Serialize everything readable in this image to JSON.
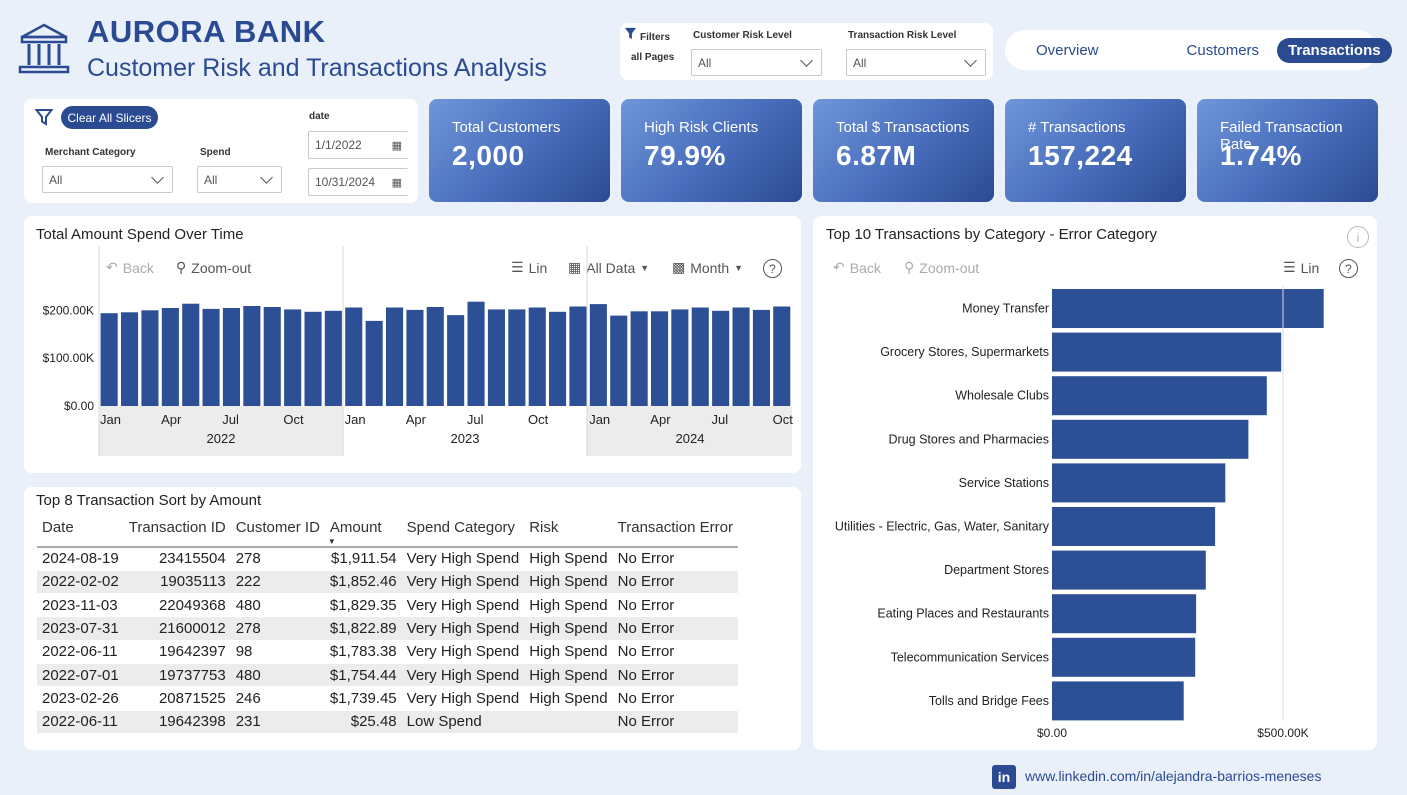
{
  "header": {
    "brand": "AURORA BANK",
    "subtitle": "Customer Risk and Transactions Analysis"
  },
  "page_filters": {
    "title_line1": "Filters",
    "title_line2": "all Pages",
    "customer_risk_label": "Customer Risk Level",
    "customer_risk_value": "All",
    "transaction_risk_label": "Transaction Risk Level",
    "transaction_risk_value": "All"
  },
  "nav": {
    "tabs": [
      {
        "label": "Overview",
        "active": false
      },
      {
        "label": "Customers",
        "active": false
      },
      {
        "label": "Transactions",
        "active": true
      }
    ]
  },
  "slicers": {
    "clear_label": "Clear All Slicers",
    "merchant_label": "Merchant Category",
    "merchant_value": "All",
    "spend_label": "Spend",
    "spend_value": "All",
    "date_label": "date",
    "date_start": "1/1/2022",
    "date_end": "10/31/2024"
  },
  "kpis": [
    {
      "label": "Total Customers",
      "value": "2,000"
    },
    {
      "label": "High Risk Clients",
      "value": "79.9%"
    },
    {
      "label": "Total $ Transactions",
      "value": "6.87M"
    },
    {
      "label": "# Transactions",
      "value": "157,224"
    },
    {
      "label": "Failed Transaction Rate",
      "value": "1.74%"
    }
  ],
  "spend_chart": {
    "title": "Total Amount Spend Over Time",
    "tools": {
      "back": "Back",
      "zoom": "Zoom-out",
      "lin": "Lin",
      "all_data": "All Data",
      "month": "Month",
      "help": "?"
    },
    "y_ticks": [
      "$200.00K",
      "$100.00K",
      "$0.00"
    ],
    "years": [
      "2022",
      "2023",
      "2024"
    ],
    "month_ticks": [
      "Jan",
      "Apr",
      "Jul",
      "Oct",
      "Jan",
      "Apr",
      "Jul",
      "Oct",
      "Jan",
      "Apr",
      "Jul",
      "Oct"
    ]
  },
  "category_chart": {
    "title": "Top 10 Transactions by Category - Error Category",
    "tools": {
      "back": "Back",
      "zoom": "Zoom-out",
      "lin": "Lin",
      "help": "?",
      "info": "i"
    },
    "x_ticks": [
      "$0.00",
      "$500.00K"
    ]
  },
  "table": {
    "title": "Top 8 Transaction Sort by Amount",
    "columns": [
      "Date",
      "Transaction ID",
      "Customer ID",
      "Amount",
      "Spend Category",
      "Risk",
      "Transaction Error"
    ],
    "rows": [
      [
        "2024-08-19",
        "23415504",
        "278",
        "$1,911.54",
        "Very High Spend",
        "High Spend",
        "No Error"
      ],
      [
        "2022-02-02",
        "19035113",
        "222",
        "$1,852.46",
        "Very High Spend",
        "High Spend",
        "No Error"
      ],
      [
        "2023-11-03",
        "22049368",
        "480",
        "$1,829.35",
        "Very High Spend",
        "High Spend",
        "No Error"
      ],
      [
        "2023-07-31",
        "21600012",
        "278",
        "$1,822.89",
        "Very High Spend",
        "High Spend",
        "No Error"
      ],
      [
        "2022-06-11",
        "19642397",
        "98",
        "$1,783.38",
        "Very High Spend",
        "High Spend",
        "No Error"
      ],
      [
        "2022-07-01",
        "19737753",
        "480",
        "$1,754.44",
        "Very High Spend",
        "High Spend",
        "No Error"
      ],
      [
        "2023-02-26",
        "20871525",
        "246",
        "$1,739.45",
        "Very High Spend",
        "High Spend",
        "No Error"
      ],
      [
        "2022-06-11",
        "19642398",
        "231",
        "$25.48",
        "Low Spend",
        "",
        "No Error"
      ]
    ]
  },
  "footer": {
    "linkedin": "www.linkedin.com/in/alejandra-barrios-meneses",
    "icon_text": "in"
  },
  "chart_data": [
    {
      "type": "bar",
      "title": "Total Amount Spend Over Time",
      "xlabel": "",
      "ylabel": "",
      "ylim": [
        0,
        230000
      ],
      "grid": false,
      "categories": [
        "2022-01",
        "2022-02",
        "2022-03",
        "2022-04",
        "2022-05",
        "2022-06",
        "2022-07",
        "2022-08",
        "2022-09",
        "2022-10",
        "2022-11",
        "2022-12",
        "2023-01",
        "2023-02",
        "2023-03",
        "2023-04",
        "2023-05",
        "2023-06",
        "2023-07",
        "2023-08",
        "2023-09",
        "2023-10",
        "2023-11",
        "2023-12",
        "2024-01",
        "2024-02",
        "2024-03",
        "2024-04",
        "2024-05",
        "2024-06",
        "2024-07",
        "2024-08",
        "2024-09",
        "2024-10"
      ],
      "values": [
        194000,
        196000,
        200000,
        205000,
        214000,
        203000,
        205000,
        209000,
        207000,
        202000,
        197000,
        199000,
        206000,
        178000,
        206000,
        201000,
        207000,
        190000,
        218000,
        202000,
        202000,
        206000,
        197000,
        208000,
        213000,
        189000,
        198000,
        198000,
        202000,
        206000,
        199000,
        206000,
        201000,
        208000
      ]
    },
    {
      "type": "bar",
      "orientation": "horizontal",
      "title": "Top 10 Transactions by Category - Error Category",
      "xlabel": "",
      "ylabel": "",
      "xlim": [
        0,
        700000
      ],
      "grid": false,
      "categories": [
        "Money Transfer",
        "Grocery Stores, Supermarkets",
        "Wholesale Clubs",
        "Drug Stores and Pharmacies",
        "Service Stations",
        "Utilities - Electric, Gas, Water, Sanitary",
        "Department Stores",
        "Eating Places and Restaurants",
        "Telecommunication Services",
        "Tolls and Bridge Fees"
      ],
      "values": [
        588000,
        496000,
        465000,
        425000,
        375000,
        353000,
        333000,
        312000,
        310000,
        285000
      ]
    }
  ]
}
